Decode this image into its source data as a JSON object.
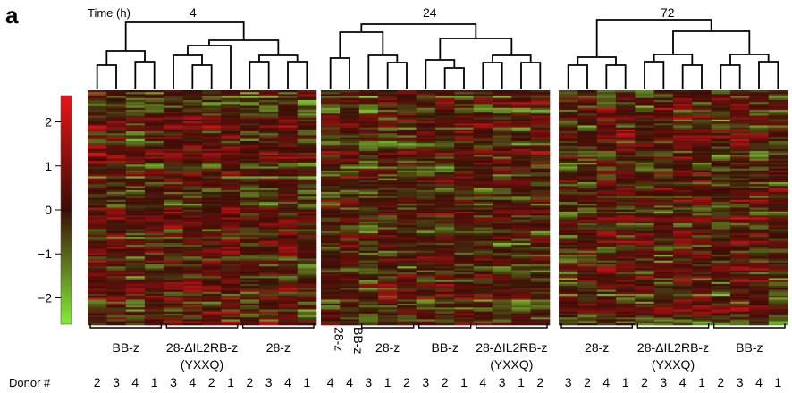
{
  "panel_label": "a",
  "time_axis_label": "Time (h)",
  "donor_axis_label": "Donor #",
  "colorbar": {
    "ticks": [
      "2",
      "1",
      "0",
      "−1",
      "−2"
    ],
    "tick_values": [
      2,
      1,
      0,
      -1,
      -2
    ],
    "range": [
      -2.6,
      2.6
    ],
    "colors": {
      "high": "#e8141a",
      "mid": "#3a0e06",
      "low": "#86ec3a"
    }
  },
  "chart_data": {
    "type": "heatmap",
    "title": "",
    "color_scale": {
      "min": -2.6,
      "max": 2.6,
      "low": "#86ec3a",
      "mid": "#3a0e06",
      "high": "#e8141a"
    },
    "panels": [
      {
        "time": "4",
        "columns": 12,
        "groups": [
          {
            "label": "BB-z",
            "donors": [
              "2",
              "3",
              "4",
              "1"
            ]
          },
          {
            "label": "28-ΔIL2RB-z",
            "sublabel": "(YXXQ)",
            "donors": [
              "3",
              "4",
              "2",
              "1"
            ]
          },
          {
            "label": "28-z",
            "donors": [
              "2",
              "3",
              "4",
              "1"
            ]
          }
        ]
      },
      {
        "time": "24",
        "columns": 12,
        "groups": [
          {
            "label": "28-z",
            "donors": [
              "4"
            ]
          },
          {
            "label": "BB-z",
            "donors": [
              "4"
            ]
          },
          {
            "label": "28-z",
            "donors": [
              "3",
              "1",
              "2"
            ]
          },
          {
            "label": "BB-z",
            "donors": [
              "3",
              "2",
              "1"
            ]
          },
          {
            "label": "28-ΔIL2RB-z",
            "sublabel": "(YXXQ)",
            "donors": [
              "4",
              "3",
              "1",
              "2"
            ]
          }
        ]
      },
      {
        "time": "72",
        "columns": 12,
        "groups": [
          {
            "label": "28-z",
            "donors": [
              "3",
              "2",
              "4",
              "1"
            ]
          },
          {
            "label": "28-ΔIL2RB-z",
            "sublabel": "(YXXQ)",
            "donors": [
              "2",
              "3",
              "4",
              "1"
            ]
          },
          {
            "label": "BB-z",
            "donors": [
              "2",
              "3",
              "4",
              "1"
            ]
          }
        ]
      }
    ]
  }
}
